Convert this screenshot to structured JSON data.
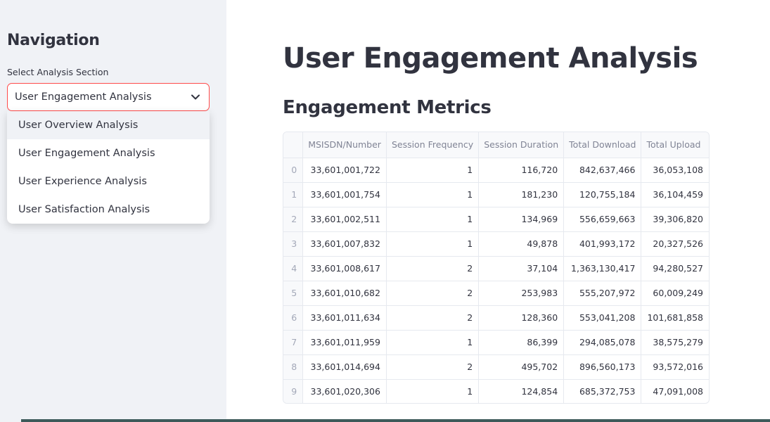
{
  "sidebar": {
    "title": "Navigation",
    "select_label": "Select Analysis Section",
    "selected": "User Engagement Analysis",
    "options": [
      {
        "label": "User Overview Analysis"
      },
      {
        "label": "User Engagement Analysis"
      },
      {
        "label": "User Experience Analysis"
      },
      {
        "label": "User Satisfaction Analysis"
      }
    ],
    "accent_color": "#ff4b4b"
  },
  "main": {
    "title": "User Engagement Analysis",
    "section_title": "Engagement Metrics",
    "table": {
      "columns": [
        "",
        "MSISDN/Number",
        "Session Frequency",
        "Session Duration",
        "Total Download",
        "Total Upload"
      ],
      "rows": [
        [
          "0",
          "33,601,001,722",
          "1",
          "116,720",
          "842,637,466",
          "36,053,108"
        ],
        [
          "1",
          "33,601,001,754",
          "1",
          "181,230",
          "120,755,184",
          "36,104,459"
        ],
        [
          "2",
          "33,601,002,511",
          "1",
          "134,969",
          "556,659,663",
          "39,306,820"
        ],
        [
          "3",
          "33,601,007,832",
          "1",
          "49,878",
          "401,993,172",
          "20,327,526"
        ],
        [
          "4",
          "33,601,008,617",
          "2",
          "37,104",
          "1,363,130,417",
          "94,280,527"
        ],
        [
          "5",
          "33,601,010,682",
          "2",
          "253,983",
          "555,207,972",
          "60,009,249"
        ],
        [
          "6",
          "33,601,011,634",
          "2",
          "128,360",
          "553,041,208",
          "101,681,858"
        ],
        [
          "7",
          "33,601,011,959",
          "1",
          "86,399",
          "294,085,078",
          "38,575,279"
        ],
        [
          "8",
          "33,601,014,694",
          "2",
          "495,702",
          "896,560,173",
          "93,572,016"
        ],
        [
          "9",
          "33,601,020,306",
          "1",
          "124,854",
          "685,372,753",
          "47,091,008"
        ]
      ]
    }
  },
  "icons": {
    "select_chevron": "chevron-down-icon"
  }
}
